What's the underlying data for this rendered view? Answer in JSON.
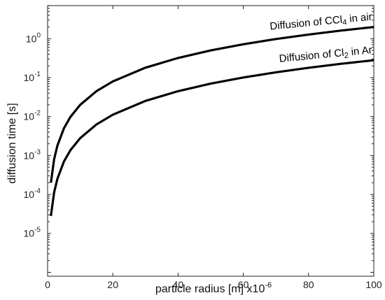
{
  "chart_data": {
    "type": "line",
    "xlabel": "particle radius [m] x10",
    "xlabel_exponent": "-6",
    "ylabel": "diffusion time [s]",
    "xlim": [
      0,
      100
    ],
    "ylim": [
      1e-06,
      10
    ],
    "yscale": "log",
    "grid": false,
    "x_ticks": [
      0,
      20,
      40,
      60,
      80,
      100
    ],
    "y_ticks": [
      {
        "value": 1e-05,
        "base": "10",
        "exp": "-5"
      },
      {
        "value": 0.0001,
        "base": "10",
        "exp": "-4"
      },
      {
        "value": 0.001,
        "base": "10",
        "exp": "-3"
      },
      {
        "value": 0.01,
        "base": "10",
        "exp": "-2"
      },
      {
        "value": 0.1,
        "base": "10",
        "exp": "-1"
      },
      {
        "value": 1,
        "base": "10",
        "exp": "0"
      }
    ],
    "series": [
      {
        "label_pre": "Diffusion of CCl",
        "label_sub": "4",
        "label_post": " in air",
        "x": [
          1,
          2,
          3,
          5,
          7,
          10,
          15,
          20,
          30,
          40,
          50,
          60,
          70,
          80,
          90,
          100
        ],
        "values": [
          0.0002,
          0.0008,
          0.0018,
          0.005,
          0.0098,
          0.02,
          0.045,
          0.08,
          0.18,
          0.32,
          0.5,
          0.72,
          0.98,
          1.28,
          1.62,
          2.0
        ]
      },
      {
        "label_pre": "Diffusion of Cl",
        "label_sub": "2",
        "label_post": " in Ar",
        "x": [
          1,
          2,
          3,
          5,
          7,
          10,
          15,
          20,
          30,
          40,
          50,
          60,
          70,
          80,
          90,
          100
        ],
        "values": [
          2.8e-05,
          0.000112,
          0.000252,
          0.0007,
          0.00137,
          0.0028,
          0.0063,
          0.0112,
          0.0252,
          0.0448,
          0.07,
          0.1008,
          0.1372,
          0.1792,
          0.2268,
          0.28
        ]
      }
    ]
  }
}
